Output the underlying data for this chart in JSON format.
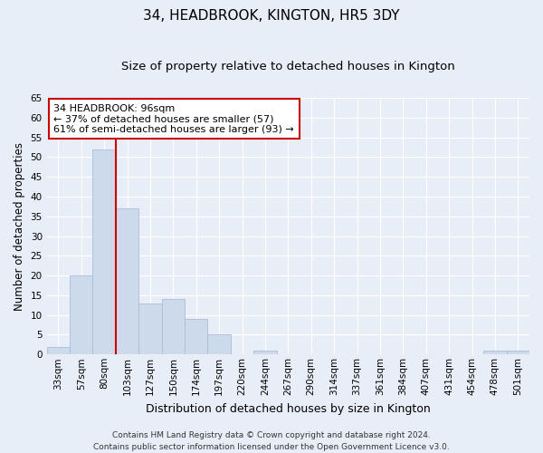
{
  "title": "34, HEADBROOK, KINGTON, HR5 3DY",
  "subtitle": "Size of property relative to detached houses in Kington",
  "xlabel": "Distribution of detached houses by size in Kington",
  "ylabel": "Number of detached properties",
  "bin_labels": [
    "33sqm",
    "57sqm",
    "80sqm",
    "103sqm",
    "127sqm",
    "150sqm",
    "174sqm",
    "197sqm",
    "220sqm",
    "244sqm",
    "267sqm",
    "290sqm",
    "314sqm",
    "337sqm",
    "361sqm",
    "384sqm",
    "407sqm",
    "431sqm",
    "454sqm",
    "478sqm",
    "501sqm"
  ],
  "bar_values": [
    2,
    20,
    52,
    37,
    13,
    14,
    9,
    5,
    0,
    1,
    0,
    0,
    0,
    0,
    0,
    0,
    0,
    0,
    0,
    1,
    1
  ],
  "bar_color": "#ccdaeb",
  "bar_edgecolor": "#aabdd4",
  "vertical_line_x": 3.0,
  "vertical_line_color": "#cc0000",
  "ylim": [
    0,
    65
  ],
  "yticks": [
    0,
    5,
    10,
    15,
    20,
    25,
    30,
    35,
    40,
    45,
    50,
    55,
    60,
    65
  ],
  "annotation_text": "34 HEADBROOK: 96sqm\n← 37% of detached houses are smaller (57)\n61% of semi-detached houses are larger (93) →",
  "annotation_box_facecolor": "#ffffff",
  "annotation_box_edgecolor": "#cc0000",
  "footer_line1": "Contains HM Land Registry data © Crown copyright and database right 2024.",
  "footer_line2": "Contains public sector information licensed under the Open Government Licence v3.0.",
  "background_color": "#e8eef7",
  "plot_background_color": "#e8eef7",
  "grid_color": "#ffffff",
  "title_fontsize": 11,
  "subtitle_fontsize": 9.5,
  "xlabel_fontsize": 9,
  "ylabel_fontsize": 8.5,
  "tick_fontsize": 7.5,
  "annotation_fontsize": 8,
  "footer_fontsize": 6.5
}
